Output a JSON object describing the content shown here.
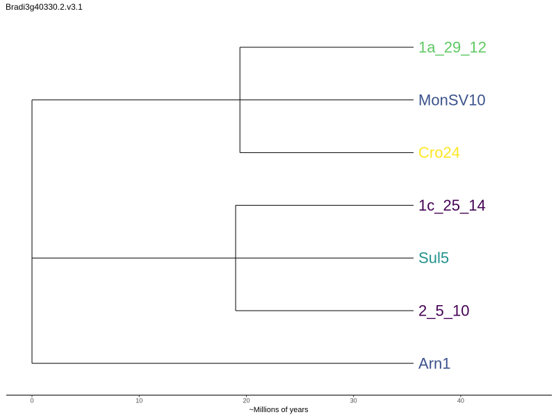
{
  "title": "Bradi3g40330.2.v3.1",
  "axis": {
    "label": "~Millions of years",
    "range": [
      -2.4,
      48.5
    ],
    "ticks": [
      0,
      10,
      20,
      30,
      40
    ]
  },
  "tree": {
    "tips": [
      {
        "label": "1a_29_12",
        "color": "#5ec962"
      },
      {
        "label": "MonSV10",
        "color": "#3b528b"
      },
      {
        "label": "Cro24",
        "color": "#fde725"
      },
      {
        "label": "1c_25_14",
        "color": "#440154"
      },
      {
        "label": "Sul5",
        "color": "#21918c"
      },
      {
        "label": "2_5_10",
        "color": "#440154"
      },
      {
        "label": "Arn1",
        "color": "#3b528b"
      }
    ],
    "tip_age": 35.6,
    "root": {
      "age": 0,
      "children": [
        "clade_a",
        "clade_b",
        "Arn1"
      ]
    },
    "clades": {
      "clade_a": {
        "age": 19.4,
        "children": [
          "1a_29_12",
          "MonSV10",
          "Cro24"
        ]
      },
      "clade_b": {
        "age": 19.0,
        "children": [
          "1c_25_14",
          "Sul5",
          "2_5_10"
        ]
      }
    }
  }
}
